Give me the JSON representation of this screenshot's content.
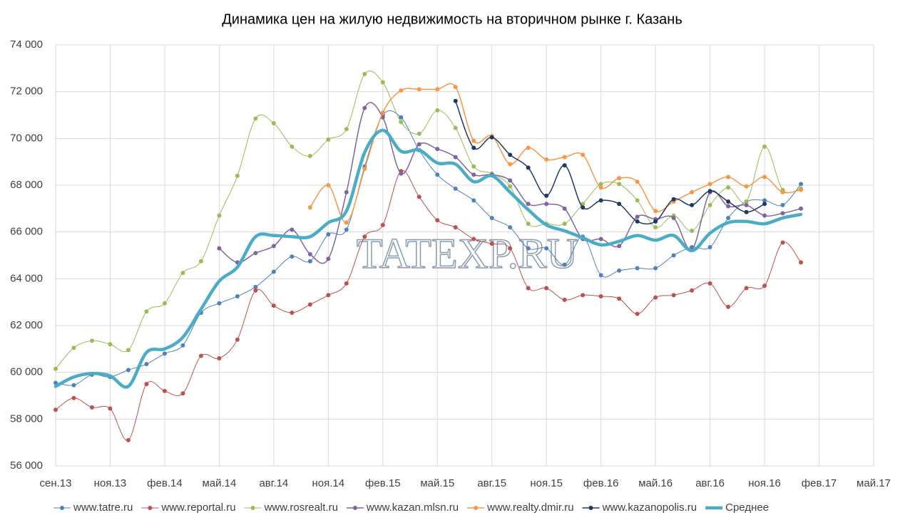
{
  "chart_data": {
    "type": "line",
    "title": "Динамика цен на жилую недвижимость на вторичном рынке г. Казань",
    "watermark": "TATEXP.RU",
    "categories": [
      "сен.13",
      null,
      null,
      "ноя.13",
      null,
      null,
      "фев.14",
      null,
      null,
      "май.14",
      null,
      null,
      "авг.14",
      null,
      null,
      "ноя.14",
      null,
      null,
      "фев.15",
      null,
      null,
      "май.15",
      null,
      null,
      "авг.15",
      null,
      null,
      "ноя.15",
      null,
      null,
      "фев.16",
      null,
      null,
      "май.16",
      null,
      null,
      "авг.16",
      null,
      null,
      "ноя.16",
      null,
      null,
      "фев.17",
      null,
      null,
      "май.17"
    ],
    "ylim": [
      56000,
      74000
    ],
    "yticks": [
      {
        "value": 56000,
        "label": "56 000"
      },
      {
        "value": 58000,
        "label": "58 000"
      },
      {
        "value": 60000,
        "label": "60 000"
      },
      {
        "value": 62000,
        "label": "62 000"
      },
      {
        "value": 64000,
        "label": "64 000"
      },
      {
        "value": 66000,
        "label": "66 000"
      },
      {
        "value": 68000,
        "label": "68 000"
      },
      {
        "value": 70000,
        "label": "70 000"
      },
      {
        "value": 72000,
        "label": "72 000"
      },
      {
        "value": 74000,
        "label": "74 000"
      }
    ],
    "grid": true,
    "legend": "bottom",
    "series": [
      {
        "name": "www.tatre.ru",
        "color": "#4f81bd",
        "markers": true,
        "width": 1,
        "values": [
          59550,
          59450,
          59900,
          59800,
          60100,
          60350,
          60800,
          61150,
          62550,
          62950,
          63250,
          63650,
          64300,
          64950,
          64750,
          65900,
          66100,
          68800,
          71000,
          70900,
          69500,
          68450,
          67850,
          67350,
          66600,
          66200,
          65300,
          65300,
          64600,
          65800,
          64150,
          64350,
          64450,
          64450,
          65000,
          65350,
          65350,
          66600,
          67300,
          67350,
          67150,
          68050,
          null,
          null,
          null,
          null
        ]
      },
      {
        "name": "www.reportal.ru",
        "color": "#c0504d",
        "markers": true,
        "width": 1,
        "values": [
          58400,
          58900,
          58500,
          58450,
          57100,
          59500,
          59200,
          59100,
          60700,
          60600,
          61400,
          63500,
          62850,
          62550,
          62900,
          63300,
          63800,
          65800,
          66300,
          68600,
          67500,
          66500,
          66200,
          65700,
          65500,
          65300,
          63600,
          63600,
          63100,
          63300,
          63250,
          63150,
          62500,
          63200,
          63300,
          63500,
          63800,
          62800,
          63600,
          63700,
          65550,
          64700,
          null,
          null,
          null,
          null
        ]
      },
      {
        "name": "www.rosrealt.ru",
        "color": "#9bbb59",
        "markers": true,
        "width": 1,
        "values": [
          60150,
          61050,
          61350,
          61200,
          60950,
          62600,
          62950,
          64250,
          64750,
          66700,
          68400,
          70850,
          70650,
          69650,
          69250,
          69950,
          70400,
          72750,
          72400,
          70700,
          70200,
          71200,
          70450,
          68800,
          68500,
          67950,
          66350,
          66350,
          66350,
          67200,
          68050,
          68050,
          67350,
          66200,
          66700,
          66050,
          67150,
          67900,
          67300,
          69650,
          67800,
          67850,
          null,
          null,
          null,
          null
        ]
      },
      {
        "name": "www.kazan.mlsn.ru",
        "color": "#8064a2",
        "markers": true,
        "width": 1.5,
        "values": [
          null,
          null,
          null,
          null,
          null,
          null,
          null,
          null,
          null,
          65300,
          64700,
          65100,
          65400,
          66100,
          65050,
          64850,
          67700,
          71300,
          70900,
          68500,
          69750,
          69550,
          69200,
          68450,
          68450,
          68200,
          67200,
          67200,
          67000,
          65700,
          65700,
          65400,
          66650,
          66550,
          66600,
          65250,
          67700,
          67100,
          67150,
          66700,
          66800,
          67000,
          null,
          null,
          null,
          null
        ]
      },
      {
        "name": "www.realty.dmir.ru",
        "color": "#f79646",
        "markers": true,
        "width": 1.5,
        "values": [
          null,
          null,
          null,
          null,
          null,
          null,
          null,
          null,
          null,
          null,
          null,
          null,
          null,
          null,
          67050,
          68000,
          66400,
          68700,
          71100,
          72050,
          72100,
          72100,
          72200,
          69900,
          70100,
          68900,
          69600,
          69100,
          69200,
          69300,
          67900,
          68300,
          68150,
          66900,
          67300,
          67700,
          68050,
          68350,
          67950,
          68350,
          67700,
          67800,
          null,
          null,
          null,
          null
        ]
      },
      {
        "name": "www.kazanopolis.ru",
        "color": "#1f3864",
        "markers": true,
        "width": 1.5,
        "values": [
          null,
          null,
          null,
          null,
          null,
          null,
          null,
          null,
          null,
          null,
          null,
          null,
          null,
          null,
          null,
          null,
          null,
          null,
          null,
          null,
          null,
          null,
          71600,
          69600,
          70050,
          69300,
          68750,
          67550,
          68850,
          67050,
          67350,
          67200,
          66450,
          66450,
          67400,
          67150,
          67750,
          67300,
          66850,
          67200,
          null,
          null,
          null,
          null,
          null,
          null
        ]
      },
      {
        "name": "Среднее",
        "color": "#4bacc6",
        "markers": false,
        "width": 4.5,
        "values": [
          59400,
          59800,
          59950,
          59850,
          59400,
          60850,
          61000,
          61500,
          62700,
          63900,
          64500,
          65800,
          65850,
          65800,
          65800,
          66400,
          66900,
          69400,
          70350,
          69450,
          69500,
          68950,
          68900,
          68150,
          68400,
          67700,
          66950,
          66300,
          66050,
          65750,
          65450,
          65600,
          65850,
          65650,
          65850,
          65200,
          65950,
          66400,
          66450,
          66350,
          66600,
          66750,
          null,
          null,
          null,
          null
        ]
      }
    ]
  }
}
